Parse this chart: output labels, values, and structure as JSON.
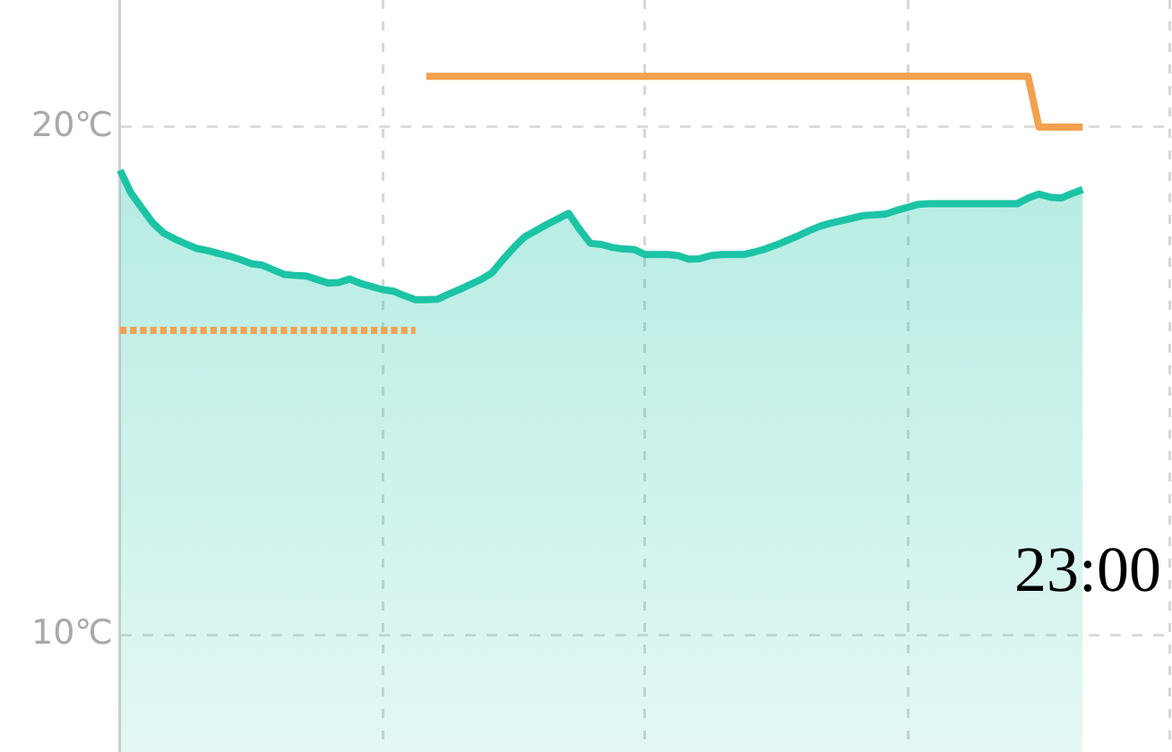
{
  "chart_data": {
    "type": "area",
    "categories": [
      null,
      null,
      null,
      null,
      null,
      null,
      null,
      null,
      null,
      null,
      null,
      null,
      null,
      null,
      null,
      null,
      null,
      null,
      null,
      null,
      null,
      null,
      null,
      null,
      null,
      null,
      null,
      null,
      null,
      null,
      null,
      null,
      null,
      null,
      null,
      null,
      null,
      null,
      null,
      null,
      null,
      null,
      null,
      null,
      null,
      null,
      null,
      null,
      null,
      null,
      null,
      null,
      null,
      null,
      null,
      null,
      null,
      null,
      null,
      null,
      null,
      null,
      null,
      null,
      null,
      null,
      null,
      null,
      null,
      null,
      null,
      null,
      null,
      null,
      null,
      null,
      null,
      null,
      null,
      null,
      null,
      null,
      null,
      null,
      null,
      null,
      null,
      null,
      null,
      null,
      null,
      null,
      null,
      null,
      null,
      null,
      null
    ],
    "series": [
      {
        "type": "area",
        "color": "#1cc4a6",
        "values": [
          19.15,
          18.7,
          18.4,
          18.11,
          17.91,
          17.8,
          17.7,
          17.61,
          17.57,
          17.51,
          17.46,
          17.39,
          17.31,
          17.28,
          17.19,
          17.1,
          17.08,
          17.07,
          17.0,
          16.93,
          16.94,
          17.01,
          16.92,
          16.86,
          16.8,
          16.77,
          16.68,
          16.6,
          16.6,
          16.61,
          16.71,
          16.8,
          16.9,
          17.0,
          17.13,
          17.39,
          17.63,
          17.84,
          17.96,
          18.08,
          18.19,
          18.3,
          17.99,
          17.71,
          17.69,
          17.63,
          17.6,
          17.59,
          17.49,
          17.49,
          17.49,
          17.47,
          17.4,
          17.41,
          17.47,
          17.49,
          17.49,
          17.49,
          17.54,
          17.6,
          17.68,
          17.77,
          17.86,
          17.96,
          18.05,
          18.11,
          18.16,
          18.21,
          18.26,
          18.27,
          18.29,
          18.36,
          18.42,
          18.48,
          18.49,
          18.49,
          18.49,
          18.49,
          18.49,
          18.49,
          18.49,
          18.49,
          18.49,
          18.6,
          18.68,
          18.62,
          18.6,
          18.69,
          18.77,
          null,
          null,
          null,
          null,
          null,
          null,
          null,
          null
        ]
      },
      {
        "type": "line",
        "color": "#f2a24e",
        "line_style": "dotted",
        "values": [
          16,
          16,
          16,
          16,
          null,
          16,
          16,
          16,
          16,
          16,
          16,
          16,
          16,
          16,
          16,
          16,
          16,
          16,
          16,
          16,
          16,
          16,
          16,
          16,
          16,
          16,
          16,
          16,
          null,
          null,
          null,
          null,
          null,
          null,
          null,
          null,
          null,
          null,
          null,
          null,
          null,
          null,
          null,
          null,
          null,
          null,
          null,
          null,
          null,
          null,
          null,
          null,
          null,
          null,
          null,
          null,
          null,
          null,
          null,
          null,
          null,
          null,
          null,
          null,
          null,
          null,
          null,
          null,
          null,
          null,
          null,
          null,
          null,
          null,
          null,
          null,
          null,
          null,
          null,
          null,
          null,
          null,
          null,
          null,
          null,
          null,
          null,
          null,
          null,
          null,
          null,
          null,
          null,
          null,
          null,
          null,
          null
        ]
      },
      {
        "type": "line",
        "color": "#f2a24e",
        "line_style": "solid",
        "values": [
          null,
          null,
          null,
          null,
          null,
          null,
          null,
          null,
          null,
          null,
          null,
          null,
          null,
          null,
          null,
          null,
          null,
          null,
          null,
          null,
          null,
          null,
          null,
          null,
          null,
          null,
          null,
          null,
          21,
          21,
          21,
          21,
          21,
          21,
          21,
          21,
          21,
          21,
          21,
          21,
          21,
          21,
          21,
          21,
          21,
          21,
          21,
          21,
          21,
          21,
          21,
          21,
          21,
          21,
          21,
          21,
          21,
          21,
          21,
          21,
          21,
          21,
          21,
          21,
          21,
          21,
          21,
          21,
          21,
          21,
          21,
          21,
          21,
          21,
          21,
          21,
          21,
          21,
          21,
          21,
          21,
          21,
          21,
          21,
          20,
          20,
          20,
          20,
          20,
          null,
          null,
          null,
          null,
          null,
          null,
          null,
          null
        ]
      }
    ],
    "ylim": [
      7.7,
      22.5
    ],
    "yticks": [
      {
        "value": 10,
        "label": "10℃"
      },
      {
        "value": 20,
        "label": "20℃"
      }
    ],
    "grid": true,
    "tick_labels": "y",
    "marker": "none",
    "annotations": [
      "23:00"
    ]
  }
}
